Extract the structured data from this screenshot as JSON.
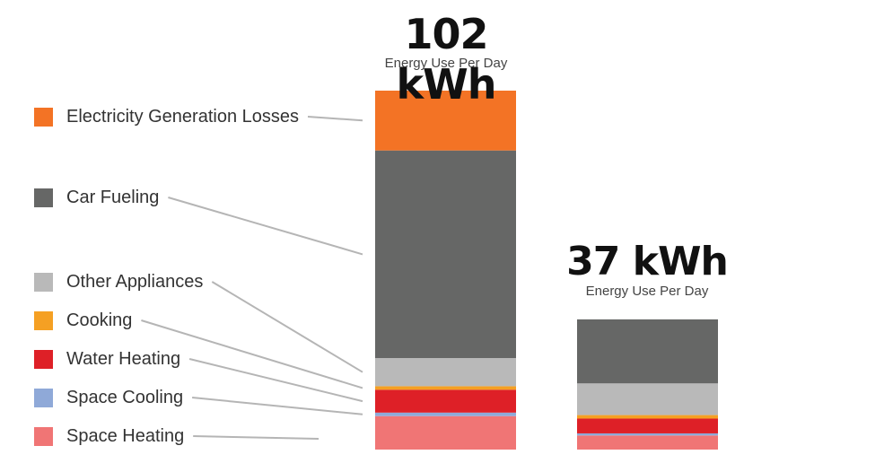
{
  "chart_data": {
    "type": "bar",
    "stacked": true,
    "ylabel": "",
    "ylim": [
      0,
      102
    ],
    "categories": [
      "",
      ""
    ],
    "totals": [
      {
        "value_label": "102 kWh",
        "caption": "Energy Use Per Day"
      },
      {
        "value_label": "37 kWh",
        "caption": "Energy Use Per Day"
      }
    ],
    "series": [
      {
        "name": "Space Heating",
        "color": "#f07575",
        "values": [
          9.5,
          4.0
        ]
      },
      {
        "name": "Space Cooling",
        "color": "#8fa9d8",
        "values": [
          1.0,
          0.6
        ]
      },
      {
        "name": "Water Heating",
        "color": "#de2027",
        "values": [
          6.5,
          4.2
        ]
      },
      {
        "name": "Cooking",
        "color": "#f5a023",
        "values": [
          1.0,
          1.0
        ]
      },
      {
        "name": "Other Appliances",
        "color": "#b9b9b9",
        "values": [
          8.0,
          9.0
        ]
      },
      {
        "name": "Car Fueling",
        "color": "#666766",
        "values": [
          59.0,
          18.2
        ]
      },
      {
        "name": "Electricity Generation Losses",
        "color": "#f37325",
        "values": [
          17.0,
          0
        ]
      }
    ]
  },
  "legend_order": [
    6,
    5,
    4,
    3,
    2,
    1,
    0
  ]
}
